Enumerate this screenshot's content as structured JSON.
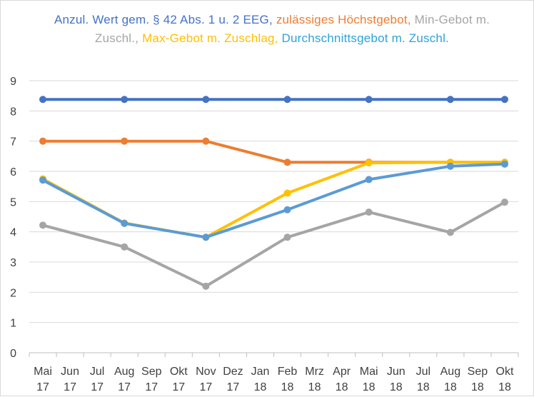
{
  "chart_data": {
    "type": "line",
    "legend_position": "top",
    "legend": [
      {
        "text": "Anzul. Wert gem. § 42 Abs. 1 u. 2 EEG,",
        "color": "#4472c4"
      },
      {
        "text": "zulässiges Höchstgebot,",
        "color": "#ed7d31"
      },
      {
        "text": "Min-Gebot m. Zuschl.,",
        "color": "#a5a5a5"
      },
      {
        "text": "Max-Gebot m. Zuschlag,",
        "color": "#ffc000"
      },
      {
        "text": "Durchschnittsgebot m. Zuschl.",
        "color": "#5b9bd5"
      }
    ],
    "categories": [
      {
        "month": "Mai",
        "year": "17"
      },
      {
        "month": "Jun",
        "year": "17"
      },
      {
        "month": "Jul",
        "year": "17"
      },
      {
        "month": "Aug",
        "year": "17"
      },
      {
        "month": "Sep",
        "year": "17"
      },
      {
        "month": "Okt",
        "year": "17"
      },
      {
        "month": "Nov",
        "year": "17"
      },
      {
        "month": "Dez",
        "year": "17"
      },
      {
        "month": "Jan",
        "year": "18"
      },
      {
        "month": "Feb",
        "year": "18"
      },
      {
        "month": "Mrz",
        "year": "18"
      },
      {
        "month": "Apr",
        "year": "18"
      },
      {
        "month": "Mai",
        "year": "18"
      },
      {
        "month": "Jun",
        "year": "18"
      },
      {
        "month": "Jul",
        "year": "18"
      },
      {
        "month": "Aug",
        "year": "18"
      },
      {
        "month": "Sep",
        "year": "18"
      },
      {
        "month": "Okt",
        "year": "18"
      }
    ],
    "yticks": [
      0,
      1,
      2,
      3,
      4,
      5,
      6,
      7,
      8,
      9
    ],
    "ylim": [
      0,
      9
    ],
    "grid": true,
    "series": [
      {
        "name": "Anzul. Wert gem. § 42 Abs. 1 u. 2 EEG",
        "color": "#4472c4",
        "points": [
          [
            0,
            8.38
          ],
          [
            3,
            8.38
          ],
          [
            6,
            8.38
          ],
          [
            9,
            8.38
          ],
          [
            12,
            8.38
          ],
          [
            15,
            8.38
          ],
          [
            17,
            8.38
          ]
        ]
      },
      {
        "name": "zulässiges Höchstgebot",
        "color": "#ed7d31",
        "points": [
          [
            0,
            7.0
          ],
          [
            3,
            7.0
          ],
          [
            6,
            7.0
          ],
          [
            9,
            6.3
          ],
          [
            12,
            6.3
          ],
          [
            15,
            6.3
          ],
          [
            17,
            6.3
          ]
        ]
      },
      {
        "name": "Max-Gebot m. Zuschlag",
        "color": "#ffc000",
        "points": [
          [
            0,
            5.75
          ],
          [
            3,
            4.29
          ],
          [
            6,
            3.82
          ],
          [
            9,
            5.28
          ],
          [
            12,
            6.28
          ],
          [
            15,
            6.3
          ],
          [
            17,
            6.3
          ]
        ]
      },
      {
        "name": "Min-Gebot m. Zuschl.",
        "color": "#a5a5a5",
        "points": [
          [
            0,
            4.22
          ],
          [
            3,
            3.5
          ],
          [
            6,
            2.2
          ],
          [
            9,
            3.82
          ],
          [
            12,
            4.65
          ],
          [
            15,
            3.98
          ],
          [
            17,
            4.98
          ]
        ]
      },
      {
        "name": "Durchschnittsgebot m. Zuschl.",
        "color": "#5b9bd5",
        "points": [
          [
            0,
            5.71
          ],
          [
            3,
            4.28
          ],
          [
            6,
            3.82
          ],
          [
            9,
            4.73
          ],
          [
            12,
            5.73
          ],
          [
            15,
            6.17
          ],
          [
            17,
            6.24
          ]
        ]
      }
    ]
  }
}
